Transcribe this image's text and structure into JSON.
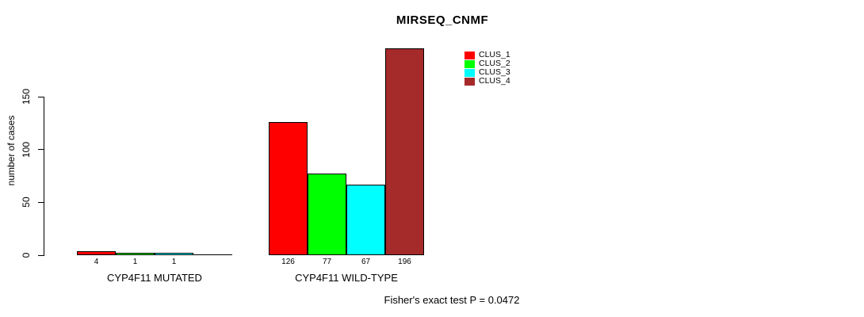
{
  "page": {
    "background": "#ffffff",
    "text_color": "#000000"
  },
  "chart_data": {
    "type": "bar",
    "title": "MIRSEQ_CNMF",
    "xlabel": "",
    "ylabel": "number of cases",
    "ylim": [
      0,
      150
    ],
    "y_ticks": [
      "0",
      "50",
      "100",
      "150"
    ],
    "grid": false,
    "legend_position": "top-right",
    "series": [
      {
        "name": "CLUS_1",
        "color": "#FF0000"
      },
      {
        "name": "CLUS_2",
        "color": "#00FF00"
      },
      {
        "name": "CLUS_3",
        "color": "#00FFFF"
      },
      {
        "name": "CLUS_4",
        "color": "#A52A2A"
      }
    ],
    "groups": [
      {
        "label": "CYP4F11 MUTATED",
        "values": [
          4,
          1,
          1,
          0
        ],
        "bar_labels": [
          "4",
          "1",
          "1",
          ""
        ]
      },
      {
        "label": "CYP4F11 WILD-TYPE",
        "values": [
          126,
          77,
          67,
          196
        ],
        "bar_labels": [
          "126",
          "77",
          "67",
          "196"
        ]
      }
    ],
    "footer": "Fisher's exact test P = 0.0472"
  }
}
